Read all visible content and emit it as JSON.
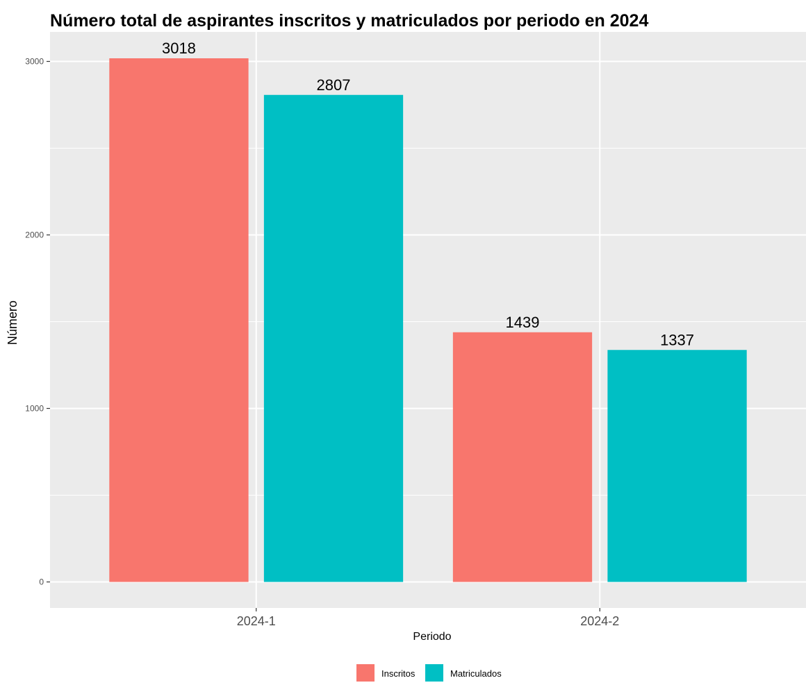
{
  "chart_data": {
    "type": "bar",
    "title": "Número total de aspirantes inscritos y matriculados por periodo en 2024",
    "xlabel": "Periodo",
    "ylabel": "Número",
    "categories": [
      "2024-1",
      "2024-2"
    ],
    "series": [
      {
        "name": "Inscritos",
        "color": "#F8766D",
        "values": [
          3018,
          1439
        ]
      },
      {
        "name": "Matriculados",
        "color": "#00BFC4",
        "values": [
          2807,
          1337
        ]
      }
    ],
    "yticks": [
      0,
      1000,
      2000,
      3000
    ],
    "ylim": [
      -150,
      3170
    ],
    "grid": true,
    "panel_background": "#EBEBEB",
    "legend_position": "bottom"
  }
}
